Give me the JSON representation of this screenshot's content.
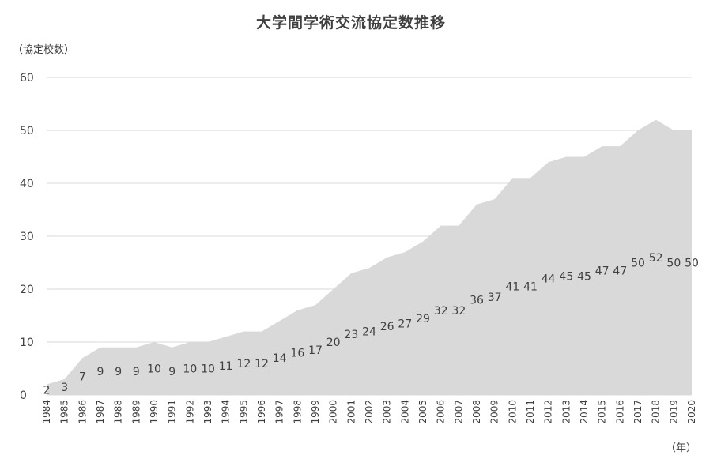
{
  "chart_data": {
    "type": "area",
    "title": "大学間学術交流協定数推移",
    "ylabel": "（協定校数）",
    "xlabel": "（年）",
    "ylim": [
      0,
      60
    ],
    "yticks": [
      "0",
      "10",
      "20",
      "30",
      "40",
      "50",
      "60"
    ],
    "grid": true,
    "legend": "none",
    "fill_color": "#d9d9d9",
    "grid_color": "#d9d9d9",
    "categories": [
      "1984",
      "1985",
      "1986",
      "1987",
      "1988",
      "1989",
      "1990",
      "1991",
      "1992",
      "1993",
      "1994",
      "1995",
      "1996",
      "1997",
      "1998",
      "1999",
      "2000",
      "2001",
      "2002",
      "2003",
      "2004",
      "2005",
      "2006",
      "2007",
      "2008",
      "2009",
      "2010",
      "2011",
      "2012",
      "2013",
      "2014",
      "2015",
      "2016",
      "2017",
      "2018",
      "2019",
      "2020"
    ],
    "values": [
      2,
      3,
      7,
      9,
      9,
      9,
      10,
      9,
      10,
      10,
      11,
      12,
      12,
      14,
      16,
      17,
      20,
      23,
      24,
      26,
      27,
      29,
      32,
      32,
      36,
      37,
      41,
      41,
      44,
      45,
      45,
      47,
      47,
      50,
      52,
      50,
      50
    ]
  }
}
